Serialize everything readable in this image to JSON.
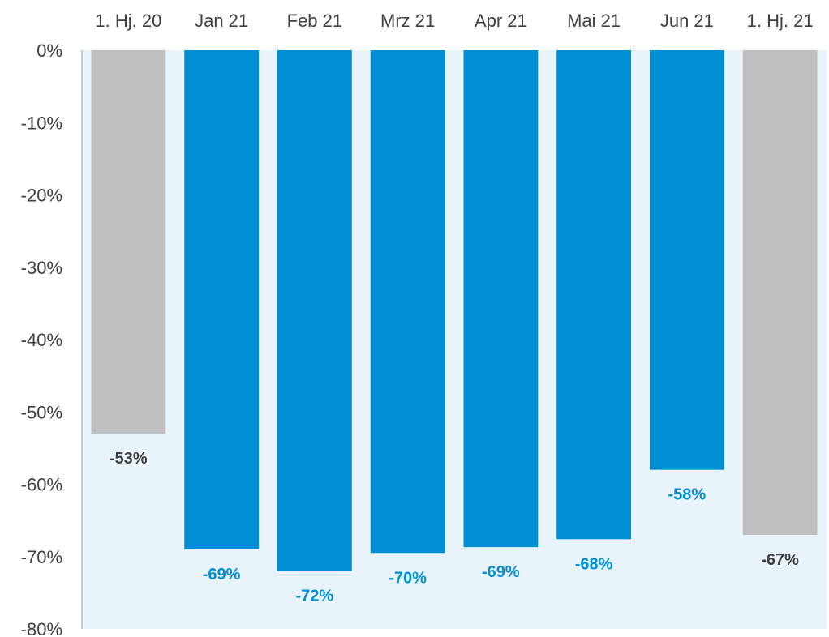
{
  "chart_data": {
    "type": "bar",
    "categories": [
      "1. Hj. 20",
      "Jan 21",
      "Feb 21",
      "Mrz 21",
      "Apr 21",
      "Mai 21",
      "Jun 21",
      "1. Hj. 21"
    ],
    "values": [
      -53,
      -69,
      -72,
      -69.5,
      -68.7,
      -67.6,
      -58,
      -67
    ],
    "data_labels": [
      "-53%",
      "-69%",
      "-72%",
      "-70%",
      "-69%",
      "-68%",
      "-58%",
      "-67%"
    ],
    "bar_colors": [
      "#bfbfbf",
      "#008fd5",
      "#008fd5",
      "#008fd5",
      "#008fd5",
      "#008fd5",
      "#008fd5",
      "#bfbfbf"
    ],
    "label_colors": [
      "#404040",
      "#008fd5",
      "#008fd5",
      "#008fd5",
      "#008fd5",
      "#008fd5",
      "#008fd5",
      "#404040"
    ],
    "plot_background": "#e9f4fa",
    "yticks": [
      {
        "value": 0,
        "label": "0%"
      },
      {
        "value": -10,
        "label": "-10%"
      },
      {
        "value": -20,
        "label": "-20%"
      },
      {
        "value": -30,
        "label": "-30%"
      },
      {
        "value": -40,
        "label": "-40%"
      },
      {
        "value": -50,
        "label": "-50%"
      },
      {
        "value": -60,
        "label": "-60%"
      },
      {
        "value": -70,
        "label": "-70%"
      },
      {
        "value": -80,
        "label": "-80%"
      }
    ],
    "ylim": [
      -80,
      0
    ],
    "x_axis_position": "top",
    "title": "",
    "xlabel": "",
    "ylabel": "",
    "grid": false,
    "legend": "none"
  }
}
